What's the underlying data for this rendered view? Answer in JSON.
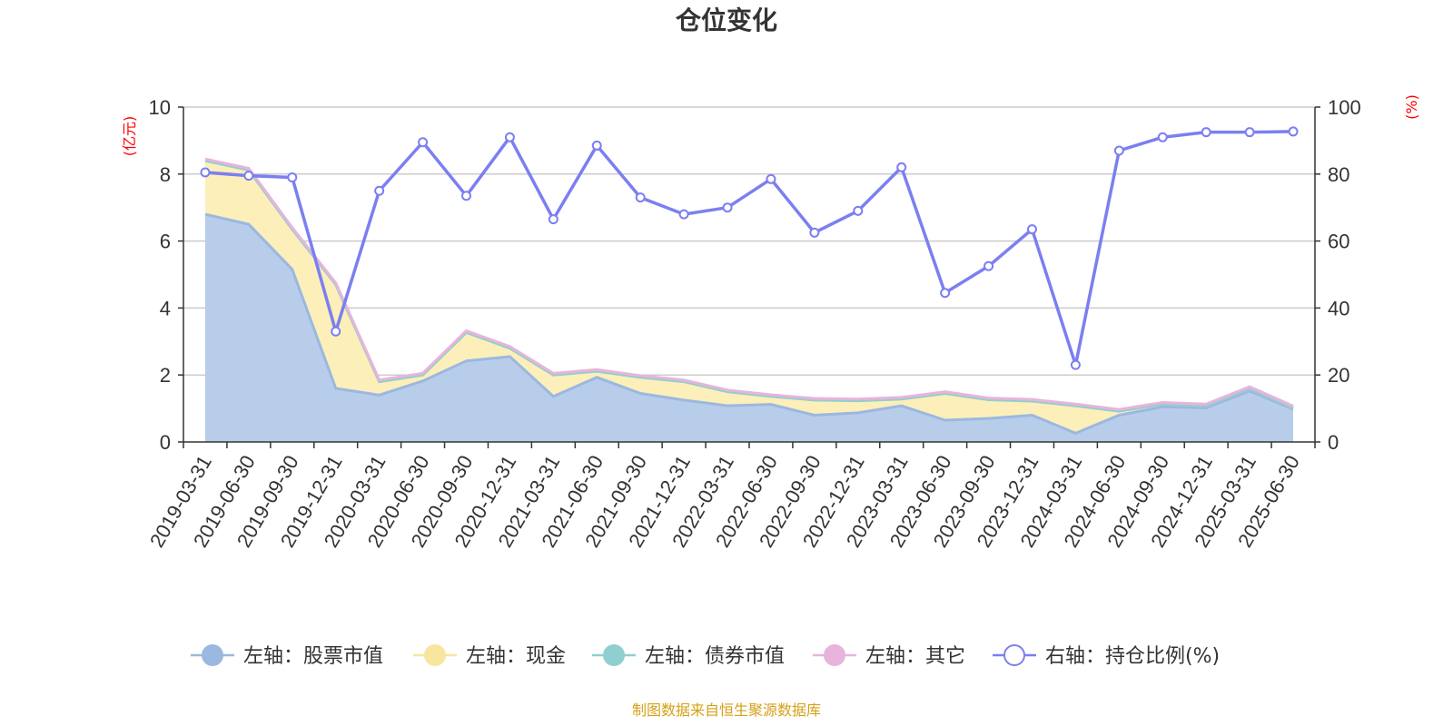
{
  "chart_data": {
    "type": "area",
    "title": "仓位变化",
    "left_unit": "(亿元)",
    "right_unit": "(%)",
    "categories": [
      "2019-03-31",
      "2019-06-30",
      "2019-09-30",
      "2019-12-31",
      "2020-03-31",
      "2020-06-30",
      "2020-09-30",
      "2020-12-31",
      "2021-03-31",
      "2021-06-30",
      "2021-09-30",
      "2021-12-31",
      "2022-03-31",
      "2022-06-30",
      "2022-09-30",
      "2022-12-31",
      "2023-03-31",
      "2023-06-30",
      "2023-09-30",
      "2023-12-31",
      "2024-03-31",
      "2024-06-30",
      "2024-09-30",
      "2024-12-31",
      "2025-03-31",
      "2025-06-30"
    ],
    "left_axis": {
      "min": 0,
      "max": 10,
      "ticks": [
        "0",
        "2",
        "4",
        "6",
        "8",
        "10"
      ]
    },
    "right_axis": {
      "min": 0,
      "max": 100,
      "ticks": [
        "0",
        "20",
        "40",
        "60",
        "80",
        "100"
      ]
    },
    "stack_series": [
      {
        "name": "左轴：股票市值",
        "color": "#9bb8e0",
        "fill": "#b8cdea",
        "values": [
          6.8,
          6.5,
          5.15,
          1.6,
          1.4,
          1.82,
          2.42,
          2.55,
          1.36,
          1.93,
          1.45,
          1.25,
          1.08,
          1.12,
          0.8,
          0.87,
          1.08,
          0.65,
          0.7,
          0.8,
          0.26,
          0.8,
          1.05,
          1.02,
          1.52,
          0.98
        ]
      },
      {
        "name": "左轴：现金",
        "color": "#f7e5a0",
        "fill": "#fcefb9",
        "values": [
          1.6,
          1.62,
          1.2,
          3.1,
          0.4,
          0.18,
          0.85,
          0.25,
          0.64,
          0.18,
          0.48,
          0.55,
          0.42,
          0.24,
          0.45,
          0.36,
          0.2,
          0.8,
          0.56,
          0.42,
          0.82,
          0.12,
          0.08,
          0.06,
          0.08,
          0.04
        ]
      },
      {
        "name": "左轴：债券市值",
        "color": "#90cfcf",
        "fill": "#a8dcdc",
        "values": [
          0,
          0,
          0,
          0,
          0,
          0,
          0,
          0,
          0,
          0,
          0,
          0,
          0,
          0,
          0,
          0,
          0,
          0,
          0,
          0,
          0,
          0,
          0,
          0,
          0,
          0
        ]
      },
      {
        "name": "左轴：其它",
        "color": "#e8b4dc",
        "fill": "#f3d4ec",
        "values": [
          0.05,
          0.05,
          0.05,
          0.05,
          0.05,
          0.05,
          0.05,
          0.05,
          0.05,
          0.05,
          0.05,
          0.05,
          0.05,
          0.05,
          0.05,
          0.05,
          0.05,
          0.05,
          0.05,
          0.05,
          0.05,
          0.05,
          0.05,
          0.05,
          0.05,
          0.05
        ]
      }
    ],
    "line_series": {
      "name": "右轴：持仓比例(%)",
      "color": "#7b7ff0",
      "values": [
        80.5,
        79.5,
        79,
        33,
        75,
        89.5,
        73.5,
        91,
        66.5,
        88.5,
        73,
        68,
        70,
        78.5,
        62.5,
        69,
        82,
        44.5,
        52.5,
        63.5,
        23,
        87,
        91,
        92.5,
        92.5,
        92.7
      ]
    },
    "legend": [
      "左轴：股票市值",
      "左轴：现金",
      "左轴：债券市值",
      "左轴：其它",
      "右轴：持仓比例(%)"
    ],
    "grid": true,
    "legend_position": "bottom"
  },
  "source": "制图数据来自恒生聚源数据库"
}
